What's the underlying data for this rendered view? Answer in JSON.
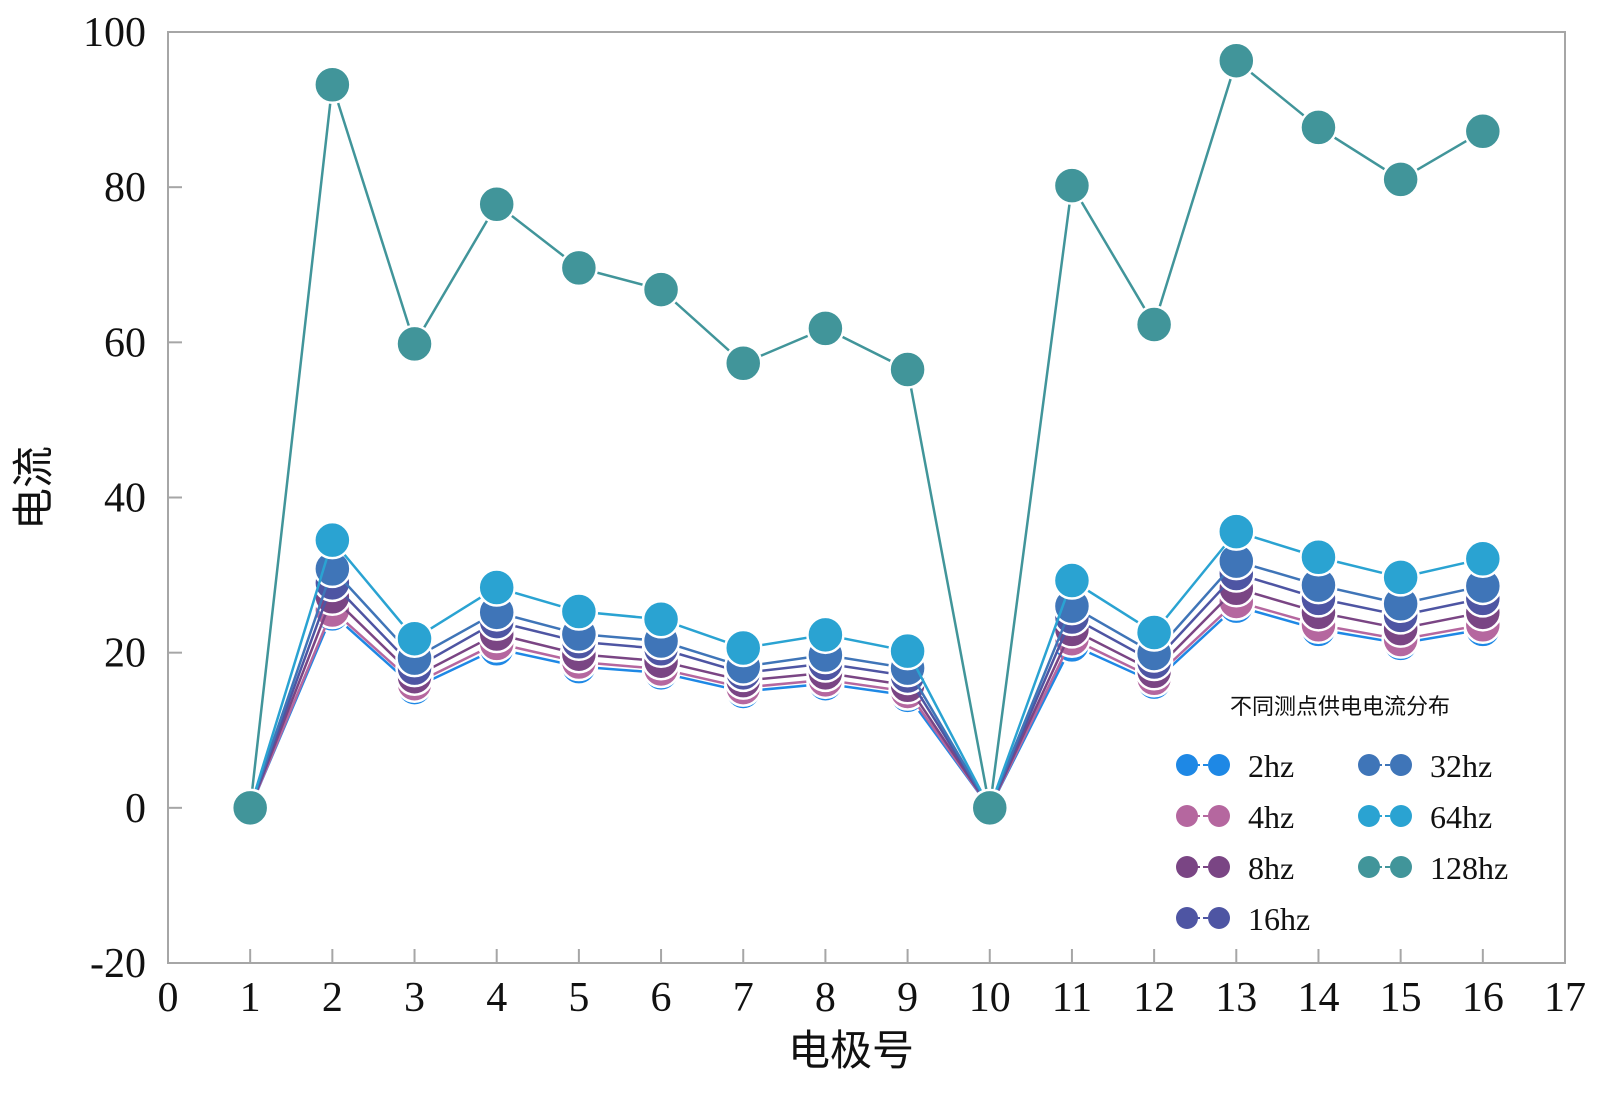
{
  "chart_data": {
    "type": "line",
    "title": "",
    "xlabel": "电极号",
    "ylabel": "电流",
    "xlim": [
      0,
      17
    ],
    "ylim": [
      -20,
      100
    ],
    "xticks": [
      "0",
      "1",
      "2",
      "3",
      "4",
      "5",
      "6",
      "7",
      "8",
      "9",
      "10",
      "11",
      "12",
      "13",
      "14",
      "15",
      "16",
      "17"
    ],
    "yticks": [
      "100",
      "80",
      "60",
      "40",
      "20",
      "0",
      "-20"
    ],
    "x": [
      1,
      2,
      3,
      4,
      5,
      6,
      7,
      8,
      9,
      10,
      11,
      12,
      13,
      14,
      15,
      16
    ],
    "legend_title": "不同测点供电电流分布",
    "legend_position": "bottom-right",
    "series": [
      {
        "name": "2hz",
        "color": "#1e88e5",
        "values": [
          0,
          25.0,
          15.5,
          20.5,
          18.2,
          17.4,
          15.0,
          16.0,
          14.5,
          0,
          21.0,
          16.2,
          26.0,
          23.0,
          21.2,
          23.0
        ]
      },
      {
        "name": "4hz",
        "color": "#b5679f",
        "values": [
          0,
          25.5,
          16.0,
          21.2,
          18.8,
          17.9,
          15.5,
          16.5,
          15.0,
          0,
          21.8,
          16.7,
          26.6,
          23.6,
          21.7,
          23.6
        ]
      },
      {
        "name": "8hz",
        "color": "#7a4584",
        "values": [
          0,
          27.2,
          16.9,
          22.4,
          19.8,
          18.9,
          16.4,
          17.4,
          15.8,
          0,
          23.0,
          17.6,
          28.3,
          25.2,
          23.1,
          25.2
        ]
      },
      {
        "name": "16hz",
        "color": "#4e55a3",
        "values": [
          0,
          29.0,
          18.0,
          24.0,
          21.4,
          20.5,
          17.4,
          18.6,
          17.0,
          0,
          24.6,
          18.8,
          30.2,
          27.0,
          24.8,
          27.0
        ]
      },
      {
        "name": "32hz",
        "color": "#3f75b8",
        "values": [
          0,
          30.8,
          19.3,
          25.2,
          22.4,
          21.5,
          18.2,
          19.7,
          18.0,
          0,
          26.0,
          19.9,
          31.8,
          28.7,
          26.3,
          28.6
        ]
      },
      {
        "name": "64hz",
        "color": "#2aa3d2",
        "values": [
          0,
          34.5,
          21.8,
          28.4,
          25.3,
          24.3,
          20.6,
          22.3,
          20.2,
          0,
          29.3,
          22.6,
          35.6,
          32.3,
          29.7,
          32.1
        ]
      },
      {
        "name": "128hz",
        "color": "#41959a",
        "values": [
          0,
          93.2,
          59.8,
          77.8,
          69.6,
          66.8,
          57.3,
          61.8,
          56.5,
          0,
          80.2,
          62.3,
          96.3,
          87.7,
          81.0,
          87.2
        ]
      }
    ]
  }
}
